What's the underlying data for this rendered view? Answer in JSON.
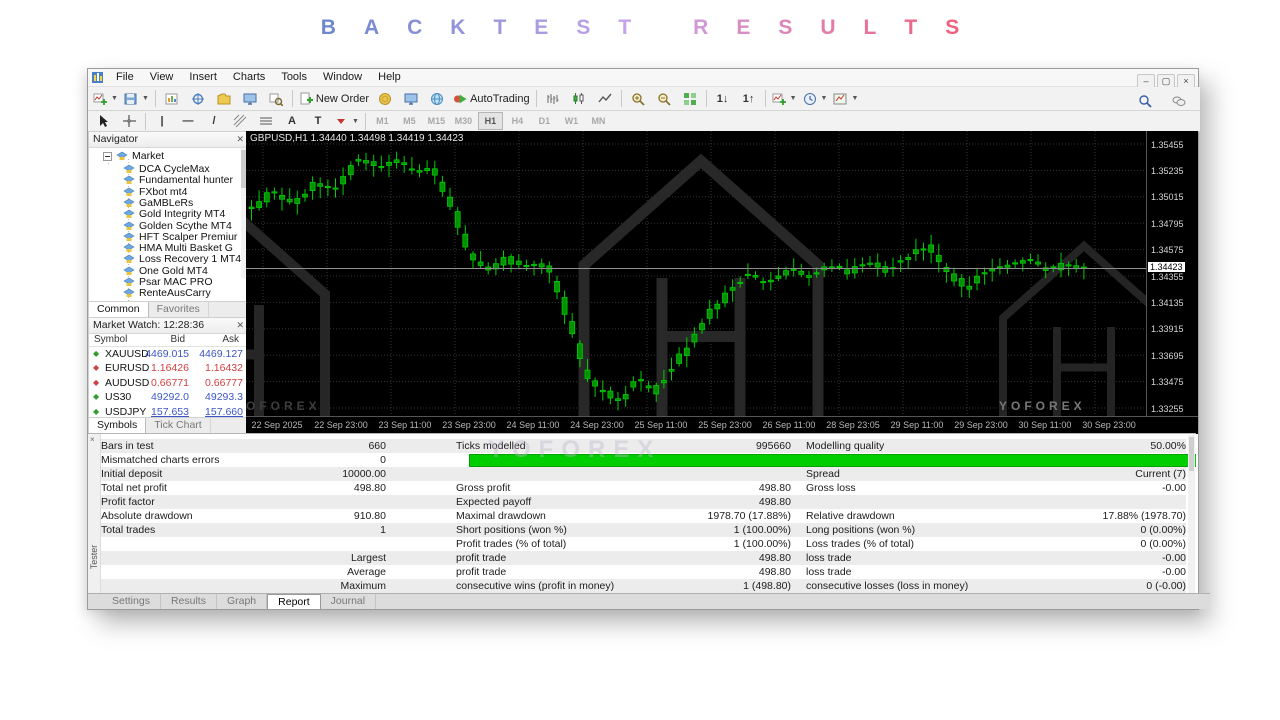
{
  "title": {
    "text": "BACKTEST RESULTS",
    "color_start": "#6f87cf",
    "color_mid": "#c9a6ea",
    "color_end": "#f2607d"
  },
  "window": {
    "menu": [
      "File",
      "View",
      "Insert",
      "Charts",
      "Tools",
      "Window",
      "Help"
    ],
    "controls": [
      "–",
      "▢",
      "×"
    ],
    "toolbar_labels": {
      "new_order": "New Order",
      "autotrading": "AutoTrading"
    },
    "toolbar_main": [
      {
        "name": "new-chart-button",
        "shape": "chartplus",
        "dropdown": true
      },
      {
        "name": "profiles-button",
        "shape": "save",
        "dropdown": true
      },
      {
        "sep": true
      },
      {
        "name": "market-watch-button",
        "shape": "chart"
      },
      {
        "name": "data-window-button",
        "shape": "target"
      },
      {
        "name": "navigator-panel-button",
        "shape": "folder"
      },
      {
        "name": "terminal-panel-button",
        "shape": "monitor"
      },
      {
        "name": "strategy-tester-button",
        "shape": "magchart"
      },
      {
        "sep": true
      },
      {
        "name": "new-order-button",
        "shape": "docplus",
        "label_key": "new_order"
      },
      {
        "name": "metaeditor-button",
        "shape": "coin"
      },
      {
        "name": "mql-community-button",
        "shape": "monitor"
      },
      {
        "name": "website-button",
        "shape": "globe"
      },
      {
        "name": "autotrading-button",
        "shape": "play",
        "label_key": "autotrading"
      },
      {
        "sep": true
      },
      {
        "name": "bar-chart-button",
        "shape": "bars"
      },
      {
        "name": "candlestick-chart-button",
        "shape": "candles"
      },
      {
        "name": "line-chart-button",
        "shape": "linechart"
      },
      {
        "sep": true
      },
      {
        "name": "zoom-in-button",
        "shape": "magplus"
      },
      {
        "name": "zoom-out-button",
        "shape": "magminus"
      },
      {
        "name": "tile-windows-button",
        "shape": "grid"
      },
      {
        "sep": true
      },
      {
        "name": "period-down-button",
        "glyph": "1↓"
      },
      {
        "name": "period-up-button",
        "glyph": "1↑"
      },
      {
        "sep": true
      },
      {
        "name": "indicators-button",
        "shape": "chartplus",
        "dropdown": true
      },
      {
        "name": "periods-button",
        "shape": "clock",
        "dropdown": true
      },
      {
        "name": "templates-button",
        "shape": "template",
        "dropdown": true
      }
    ],
    "toolbar_right": [
      {
        "name": "search-icon",
        "shape": "mag"
      },
      {
        "name": "chat-icon",
        "shape": "chat"
      }
    ],
    "draw_tools": [
      {
        "name": "cursor-tool",
        "shape": "cursor"
      },
      {
        "name": "crosshair-tool",
        "shape": "crosshair"
      },
      {
        "sep": true
      },
      {
        "name": "vertical-line-tool",
        "glyph": "|"
      },
      {
        "name": "horizontal-line-tool",
        "glyph": "—"
      },
      {
        "name": "trendline-tool",
        "glyph": "/"
      },
      {
        "name": "fibonacci-tool",
        "shape": "fibo"
      },
      {
        "name": "channels-tool",
        "shape": "lines"
      },
      {
        "name": "text-tool",
        "glyph": "A"
      },
      {
        "name": "label-tool",
        "glyph": "T"
      },
      {
        "name": "arrows-tool",
        "shape": "arrowdrop",
        "dropdown": true
      }
    ],
    "timeframes": [
      "M1",
      "M5",
      "M15",
      "M30",
      "H1",
      "H4",
      "D1",
      "W1",
      "MN"
    ],
    "active_timeframe": "H1"
  },
  "navigator": {
    "title": "Navigator",
    "root": "Market",
    "items": [
      "DCA CycleMax",
      "Fundamental hunter",
      "FXbot mt4",
      "GaMBLeRs",
      "Gold Integrity MT4",
      "Golden Scythe MT4",
      "HFT Scalper Premiur",
      "HMA Multi Basket G",
      "Loss Recovery 1 MT4",
      "One Gold MT4",
      "Psar MAC PRO",
      "RenteAusCarry"
    ],
    "tabs": [
      "Common",
      "Favorites"
    ],
    "active_tab": "Common"
  },
  "market_watch": {
    "title": "Market Watch: 12:28:36",
    "columns": [
      "Symbol",
      "Bid",
      "Ask"
    ],
    "rows": [
      {
        "symbol": "XAUUSD",
        "bid": "4469.015",
        "ask": "4469.127",
        "direction": "up"
      },
      {
        "symbol": "EURUSD",
        "bid": "1.16426",
        "ask": "1.16432",
        "direction": "down"
      },
      {
        "symbol": "AUDUSD",
        "bid": "0.66771",
        "ask": "0.66777",
        "direction": "down"
      },
      {
        "symbol": "US30",
        "bid": "49292.0",
        "ask": "49293.3",
        "direction": "up"
      },
      {
        "symbol": "USDJPY",
        "bid": "157.653",
        "ask": "157.660",
        "direction": "up",
        "underline": true
      }
    ],
    "up_color": "#3c56c8",
    "down_color": "#d43f3f",
    "tabs": [
      "Symbols",
      "Tick Chart"
    ],
    "active_tab": "Symbols"
  },
  "chart": {
    "header": "GBPUSD,H1  1.34440 1.34498 1.34419 1.34423",
    "watermark_text": "YOFOREX",
    "price_ticks": [
      "1.35455",
      "1.35235",
      "1.35015",
      "1.34795",
      "1.34575",
      "1.34355",
      "1.34135",
      "1.33915",
      "1.33695",
      "1.33475",
      "1.33255"
    ],
    "current_price": "1.34423",
    "time_labels": [
      "22 Sep 2025",
      "22 Sep 23:00",
      "23 Sep 11:00",
      "23 Sep 23:00",
      "24 Sep 11:00",
      "24 Sep 23:00",
      "25 Sep 11:00",
      "25 Sep 23:00",
      "26 Sep 11:00",
      "28 Sep 23:05",
      "29 Sep 11:00",
      "29 Sep 23:00",
      "30 Sep 11:00",
      "30 Sep 23:00"
    ]
  },
  "chart_data": {
    "type": "candlestick",
    "symbol": "GBPUSD",
    "timeframe": "H1",
    "open": 1.3444,
    "high": 1.34498,
    "low": 1.34419,
    "close": 1.34423,
    "y_min": 1.33255,
    "y_max": 1.35455,
    "tick_step": 0.0022,
    "candle_count": 110,
    "up_color": "#00cc00",
    "price_path": [
      [
        0.0,
        1.3492
      ],
      [
        0.024,
        1.3506
      ],
      [
        0.048,
        1.3496
      ],
      [
        0.077,
        1.3514
      ],
      [
        0.101,
        1.3508
      ],
      [
        0.125,
        1.3535
      ],
      [
        0.149,
        1.3526
      ],
      [
        0.173,
        1.3532
      ],
      [
        0.196,
        1.3522
      ],
      [
        0.214,
        1.3526
      ],
      [
        0.238,
        1.3495
      ],
      [
        0.262,
        1.3452
      ],
      [
        0.28,
        1.344
      ],
      [
        0.304,
        1.345
      ],
      [
        0.327,
        1.3442
      ],
      [
        0.351,
        1.3445
      ],
      [
        0.363,
        1.343
      ],
      [
        0.381,
        1.3395
      ],
      [
        0.399,
        1.3355
      ],
      [
        0.417,
        1.334
      ],
      [
        0.44,
        1.3332
      ],
      [
        0.464,
        1.335
      ],
      [
        0.482,
        1.3338
      ],
      [
        0.5,
        1.3355
      ],
      [
        0.518,
        1.3372
      ],
      [
        0.536,
        1.339
      ],
      [
        0.554,
        1.341
      ],
      [
        0.577,
        1.3425
      ],
      [
        0.595,
        1.3438
      ],
      [
        0.619,
        1.343
      ],
      [
        0.643,
        1.3442
      ],
      [
        0.667,
        1.3435
      ],
      [
        0.69,
        1.3445
      ],
      [
        0.714,
        1.3438
      ],
      [
        0.738,
        1.3448
      ],
      [
        0.762,
        1.344
      ],
      [
        0.786,
        1.3452
      ],
      [
        0.81,
        1.346
      ],
      [
        0.833,
        1.344
      ],
      [
        0.857,
        1.3425
      ],
      [
        0.881,
        1.344
      ],
      [
        0.905,
        1.3445
      ],
      [
        0.929,
        1.345
      ],
      [
        0.952,
        1.344
      ],
      [
        0.976,
        1.3445
      ],
      [
        1.0,
        1.34423
      ]
    ]
  },
  "report": {
    "close_label": "×",
    "tester_label": "Tester",
    "watermark": "YOFOREX",
    "green_bar_row": 1,
    "green_color": "#00ce00",
    "rows": [
      [
        "Bars in test",
        "660",
        "Ticks modelled",
        "995660",
        "Modelling quality",
        "50.00%"
      ],
      [
        "Mismatched charts errors",
        "0",
        "",
        "",
        "",
        ""
      ],
      [
        "Initial deposit",
        "10000.00",
        "",
        "",
        "Spread",
        "Current (7)"
      ],
      [
        "Total net profit",
        "498.80",
        "Gross profit",
        "498.80",
        "Gross loss",
        "-0.00"
      ],
      [
        "Profit factor",
        "",
        "Expected payoff",
        "498.80",
        "",
        ""
      ],
      [
        "Absolute drawdown",
        "910.80",
        "Maximal drawdown",
        "1978.70 (17.88%)",
        "Relative drawdown",
        "17.88% (1978.70)"
      ],
      [
        "Total trades",
        "1",
        "Short positions (won %)",
        "1 (100.00%)",
        "Long positions (won %)",
        "0 (0.00%)"
      ],
      [
        "",
        "",
        "Profit trades (% of total)",
        "1 (100.00%)",
        "Loss trades (% of total)",
        "0 (0.00%)"
      ],
      [
        "",
        "Largest",
        "profit trade",
        "498.80",
        "loss trade",
        "-0.00"
      ],
      [
        "",
        "Average",
        "profit trade",
        "498.80",
        "loss trade",
        "-0.00"
      ],
      [
        "",
        "Maximum",
        "consecutive wins (profit in money)",
        "1 (498.80)",
        "consecutive losses (loss in money)",
        "0 (-0.00)"
      ]
    ],
    "tabs": [
      "Settings",
      "Results",
      "Graph",
      "Report",
      "Journal"
    ],
    "active_tab": "Report"
  }
}
